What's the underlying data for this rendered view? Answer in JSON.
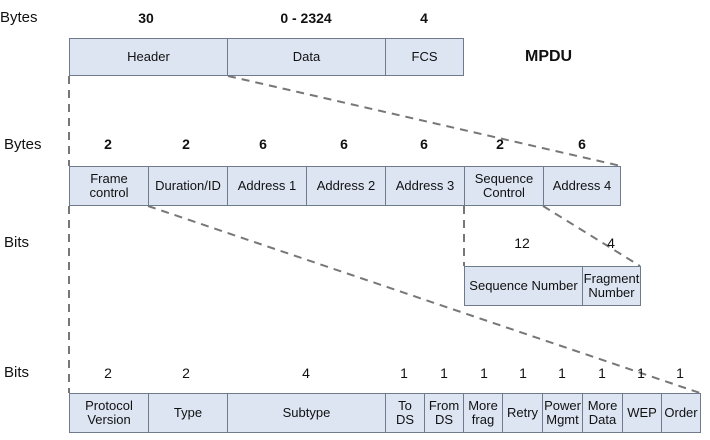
{
  "mpdu": {
    "unit_label": "Bytes",
    "title": "MPDU",
    "fields": [
      {
        "label": "Header",
        "size": "30"
      },
      {
        "label": "Data",
        "size": "0 - 2324"
      },
      {
        "label": "FCS",
        "size": "4"
      }
    ]
  },
  "header": {
    "unit_label": "Bytes",
    "fields": [
      {
        "label": "Frame control",
        "size": "2"
      },
      {
        "label": "Duration/ID",
        "size": "2"
      },
      {
        "label": "Address 1",
        "size": "6"
      },
      {
        "label": "Address 2",
        "size": "6"
      },
      {
        "label": "Address 3",
        "size": "6"
      },
      {
        "label": "Sequence Control",
        "size": "2"
      },
      {
        "label": "Address 4",
        "size": "6"
      }
    ]
  },
  "sequence_control": {
    "unit_label": "Bits",
    "fields": [
      {
        "label": "Sequence Number",
        "size": "12"
      },
      {
        "label": "Fragment Number",
        "size": "4"
      }
    ]
  },
  "frame_control": {
    "unit_label": "Bits",
    "fields": [
      {
        "label": "Protocol Version",
        "size": "2"
      },
      {
        "label": "Type",
        "size": "2"
      },
      {
        "label": "Subtype",
        "size": "4"
      },
      {
        "label": "To DS",
        "size": "1"
      },
      {
        "label": "From DS",
        "size": "1"
      },
      {
        "label": "More frag",
        "size": "1"
      },
      {
        "label": "Retry",
        "size": "1"
      },
      {
        "label": "Power Mgmt",
        "size": "1"
      },
      {
        "label": "More Data",
        "size": "1"
      },
      {
        "label": "WEP",
        "size": "1"
      },
      {
        "label": "Order",
        "size": "1"
      }
    ]
  },
  "colors": {
    "box_fill": "#dde5f3",
    "box_border": "#6f7b8c",
    "connector": "#777777"
  }
}
